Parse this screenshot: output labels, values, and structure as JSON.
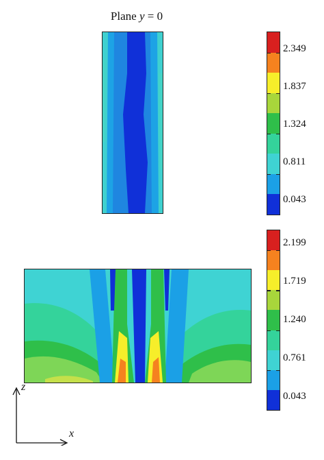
{
  "top_panel": {
    "title_prefix": "Plane ",
    "title_var": "y",
    "title_suffix": " = 0"
  },
  "colorbar_top": {
    "ticks": [
      "2.349",
      "1.837",
      "1.324",
      "0.811",
      "0.043"
    ],
    "colors": [
      "#d8201f",
      "#f5821f",
      "#f6ee2a",
      "#a8d63b",
      "#2fbf4a",
      "#34d39b",
      "#3fd3d3",
      "#1ba0e6",
      "#1030d8"
    ]
  },
  "colorbar_bottom": {
    "ticks": [
      "2.199",
      "1.719",
      "1.240",
      "0.761",
      "0.043"
    ],
    "colors": [
      "#d8201f",
      "#f5821f",
      "#f6ee2a",
      "#a8d63b",
      "#2fbf4a",
      "#34d39b",
      "#3fd3d3",
      "#1ba0e6",
      "#1030d8"
    ]
  },
  "axes": {
    "vertical": "z",
    "horizontal": "x"
  }
}
